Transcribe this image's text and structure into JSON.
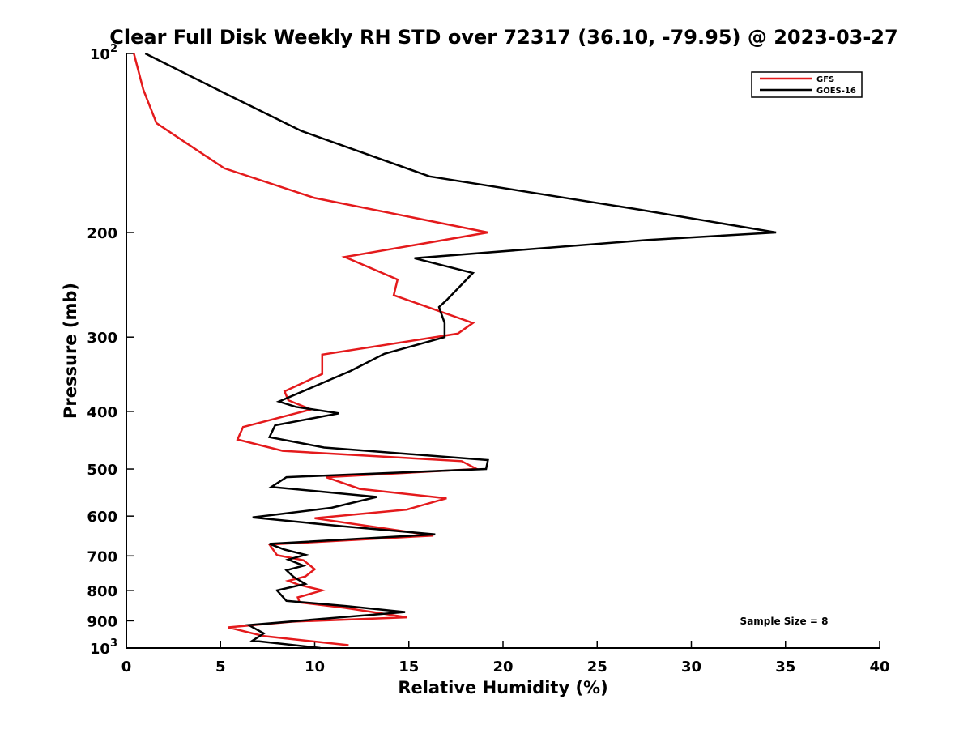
{
  "chart_data": {
    "type": "line",
    "title": "Clear Full Disk Weekly RH STD over 72317 (36.10, -79.95) @ 2023-03-27",
    "xlabel": "Relative Humidity (%)",
    "ylabel": "Pressure (mb)",
    "xlim": [
      0,
      40
    ],
    "ylim": [
      100,
      1000
    ],
    "y_scale": "log",
    "y_reversed": true,
    "grid": false,
    "legend_position": "top-right",
    "x_ticks": [
      "0",
      "5",
      "10",
      "15",
      "20",
      "25",
      "30",
      "35",
      "40"
    ],
    "x_tick_values": [
      0,
      5,
      10,
      15,
      20,
      25,
      30,
      35,
      40
    ],
    "y_ticks": [
      {
        "value": 100,
        "base": "10",
        "exp": "2"
      },
      {
        "value": 200,
        "label": "200"
      },
      {
        "value": 300,
        "label": "300"
      },
      {
        "value": 400,
        "label": "400"
      },
      {
        "value": 500,
        "label": "500"
      },
      {
        "value": 600,
        "label": "600"
      },
      {
        "value": 700,
        "label": "700"
      },
      {
        "value": 800,
        "label": "800"
      },
      {
        "value": 900,
        "label": "900"
      },
      {
        "value": 1000,
        "base": "10",
        "exp": "3"
      }
    ],
    "series": [
      {
        "name": "GFS",
        "color": "#e41a1c",
        "points": [
          [
            0.4,
            100
          ],
          [
            0.9,
            115
          ],
          [
            1.6,
            131
          ],
          [
            5.2,
            156
          ],
          [
            10.0,
            175
          ],
          [
            19.2,
            200
          ],
          [
            11.6,
            220
          ],
          [
            14.4,
            240
          ],
          [
            14.2,
            255
          ],
          [
            18.4,
            284
          ],
          [
            17.6,
            296
          ],
          [
            10.4,
            321
          ],
          [
            10.4,
            346
          ],
          [
            8.4,
            370
          ],
          [
            8.6,
            383
          ],
          [
            9.8,
            397
          ],
          [
            6.2,
            425
          ],
          [
            5.9,
            446
          ],
          [
            8.3,
            466
          ],
          [
            17.8,
            485
          ],
          [
            18.6,
            500
          ],
          [
            10.6,
            516
          ],
          [
            12.4,
            540
          ],
          [
            17.0,
            560
          ],
          [
            14.9,
            585
          ],
          [
            10.0,
            605
          ],
          [
            12.6,
            622
          ],
          [
            16.3,
            647
          ],
          [
            7.6,
            670
          ],
          [
            8.0,
            698
          ],
          [
            9.4,
            712
          ],
          [
            10.0,
            737
          ],
          [
            9.5,
            758
          ],
          [
            8.6,
            771
          ],
          [
            9.1,
            782
          ],
          [
            10.4,
            800
          ],
          [
            9.1,
            822
          ],
          [
            9.2,
            838
          ],
          [
            11.6,
            856
          ],
          [
            14.9,
            888
          ],
          [
            8.8,
            903
          ],
          [
            5.4,
            923
          ],
          [
            7.3,
            955
          ],
          [
            11.8,
            989
          ]
        ]
      },
      {
        "name": "GOES-16",
        "color": "#000000",
        "points": [
          [
            1.0,
            100
          ],
          [
            5.3,
            117
          ],
          [
            9.3,
            135
          ],
          [
            16.1,
            161
          ],
          [
            27.2,
            183
          ],
          [
            34.5,
            200
          ],
          [
            27.6,
            206
          ],
          [
            15.3,
            221
          ],
          [
            18.4,
            234
          ],
          [
            17.0,
            260
          ],
          [
            16.6,
            267
          ],
          [
            16.9,
            284
          ],
          [
            16.9,
            300
          ],
          [
            13.7,
            320
          ],
          [
            11.9,
            342
          ],
          [
            8.1,
            385
          ],
          [
            9.0,
            393
          ],
          [
            11.3,
            403
          ],
          [
            7.9,
            422
          ],
          [
            7.6,
            442
          ],
          [
            10.5,
            460
          ],
          [
            19.2,
            483
          ],
          [
            19.1,
            500
          ],
          [
            8.5,
            516
          ],
          [
            7.7,
            536
          ],
          [
            13.3,
            557
          ],
          [
            10.9,
            581
          ],
          [
            6.7,
            603
          ],
          [
            11.5,
            624
          ],
          [
            16.4,
            644
          ],
          [
            7.6,
            668
          ],
          [
            8.4,
            683
          ],
          [
            9.5,
            697
          ],
          [
            8.6,
            710
          ],
          [
            9.4,
            727
          ],
          [
            8.5,
            740
          ],
          [
            8.9,
            760
          ],
          [
            9.5,
            780
          ],
          [
            8.0,
            800
          ],
          [
            8.5,
            833
          ],
          [
            11.7,
            850
          ],
          [
            14.8,
            870
          ],
          [
            10.8,
            891
          ],
          [
            6.5,
            915
          ],
          [
            7.3,
            945
          ],
          [
            6.7,
            972
          ],
          [
            10.3,
            1000
          ]
        ]
      }
    ],
    "annotation": "Sample Size = 8"
  }
}
